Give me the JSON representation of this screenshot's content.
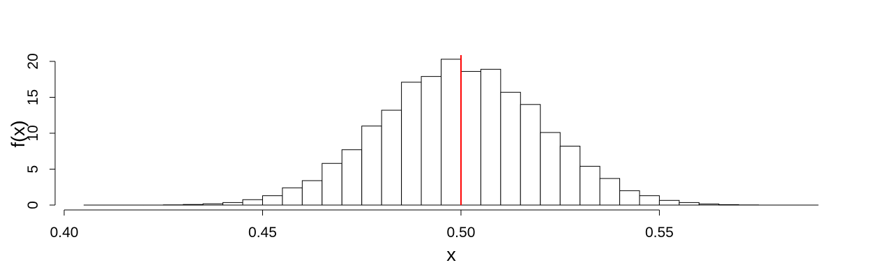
{
  "chart_data": {
    "type": "bar",
    "subtype": "histogram",
    "title": "",
    "xlabel": "x",
    "ylabel": "f(x)",
    "xlim": [
      0.4,
      0.59
    ],
    "ylim": [
      0,
      21
    ],
    "x_ticks": [
      "0.40",
      "0.45",
      "0.50",
      "0.55"
    ],
    "y_ticks": [
      "0",
      "5",
      "10",
      "15",
      "20"
    ],
    "bin_width": 0.005,
    "bins": [
      {
        "x0": 0.405,
        "x1": 0.41,
        "value": 0
      },
      {
        "x0": 0.41,
        "x1": 0.415,
        "value": 0
      },
      {
        "x0": 0.415,
        "x1": 0.42,
        "value": 0
      },
      {
        "x0": 0.42,
        "x1": 0.425,
        "value": 0
      },
      {
        "x0": 0.425,
        "x1": 0.43,
        "value": 0.03
      },
      {
        "x0": 0.43,
        "x1": 0.435,
        "value": 0.08
      },
      {
        "x0": 0.435,
        "x1": 0.44,
        "value": 0.18
      },
      {
        "x0": 0.44,
        "x1": 0.445,
        "value": 0.35
      },
      {
        "x0": 0.445,
        "x1": 0.45,
        "value": 0.75
      },
      {
        "x0": 0.45,
        "x1": 0.455,
        "value": 1.3
      },
      {
        "x0": 0.455,
        "x1": 0.46,
        "value": 2.4
      },
      {
        "x0": 0.46,
        "x1": 0.465,
        "value": 3.4
      },
      {
        "x0": 0.465,
        "x1": 0.47,
        "value": 5.8
      },
      {
        "x0": 0.47,
        "x1": 0.475,
        "value": 7.7
      },
      {
        "x0": 0.475,
        "x1": 0.48,
        "value": 11.0
      },
      {
        "x0": 0.48,
        "x1": 0.485,
        "value": 13.2
      },
      {
        "x0": 0.485,
        "x1": 0.49,
        "value": 17.1
      },
      {
        "x0": 0.49,
        "x1": 0.495,
        "value": 17.9
      },
      {
        "x0": 0.495,
        "x1": 0.5,
        "value": 20.3
      },
      {
        "x0": 0.5,
        "x1": 0.505,
        "value": 18.6
      },
      {
        "x0": 0.505,
        "x1": 0.51,
        "value": 18.9
      },
      {
        "x0": 0.51,
        "x1": 0.515,
        "value": 15.7
      },
      {
        "x0": 0.515,
        "x1": 0.52,
        "value": 14.0
      },
      {
        "x0": 0.52,
        "x1": 0.525,
        "value": 10.1
      },
      {
        "x0": 0.525,
        "x1": 0.53,
        "value": 8.2
      },
      {
        "x0": 0.53,
        "x1": 0.535,
        "value": 5.4
      },
      {
        "x0": 0.535,
        "x1": 0.54,
        "value": 3.7
      },
      {
        "x0": 0.54,
        "x1": 0.545,
        "value": 2.0
      },
      {
        "x0": 0.545,
        "x1": 0.55,
        "value": 1.3
      },
      {
        "x0": 0.55,
        "x1": 0.555,
        "value": 0.65
      },
      {
        "x0": 0.555,
        "x1": 0.56,
        "value": 0.35
      },
      {
        "x0": 0.56,
        "x1": 0.565,
        "value": 0.15
      },
      {
        "x0": 0.565,
        "x1": 0.57,
        "value": 0.06
      },
      {
        "x0": 0.57,
        "x1": 0.575,
        "value": 0.02
      },
      {
        "x0": 0.575,
        "x1": 0.58,
        "value": 0
      },
      {
        "x0": 0.58,
        "x1": 0.585,
        "value": 0
      },
      {
        "x0": 0.585,
        "x1": 0.59,
        "value": 0
      }
    ],
    "vline": {
      "x": 0.5,
      "color": "#ff0000"
    },
    "bar_fill": "#ffffff",
    "bar_stroke": "#000000",
    "grid": false,
    "legend": "none"
  }
}
